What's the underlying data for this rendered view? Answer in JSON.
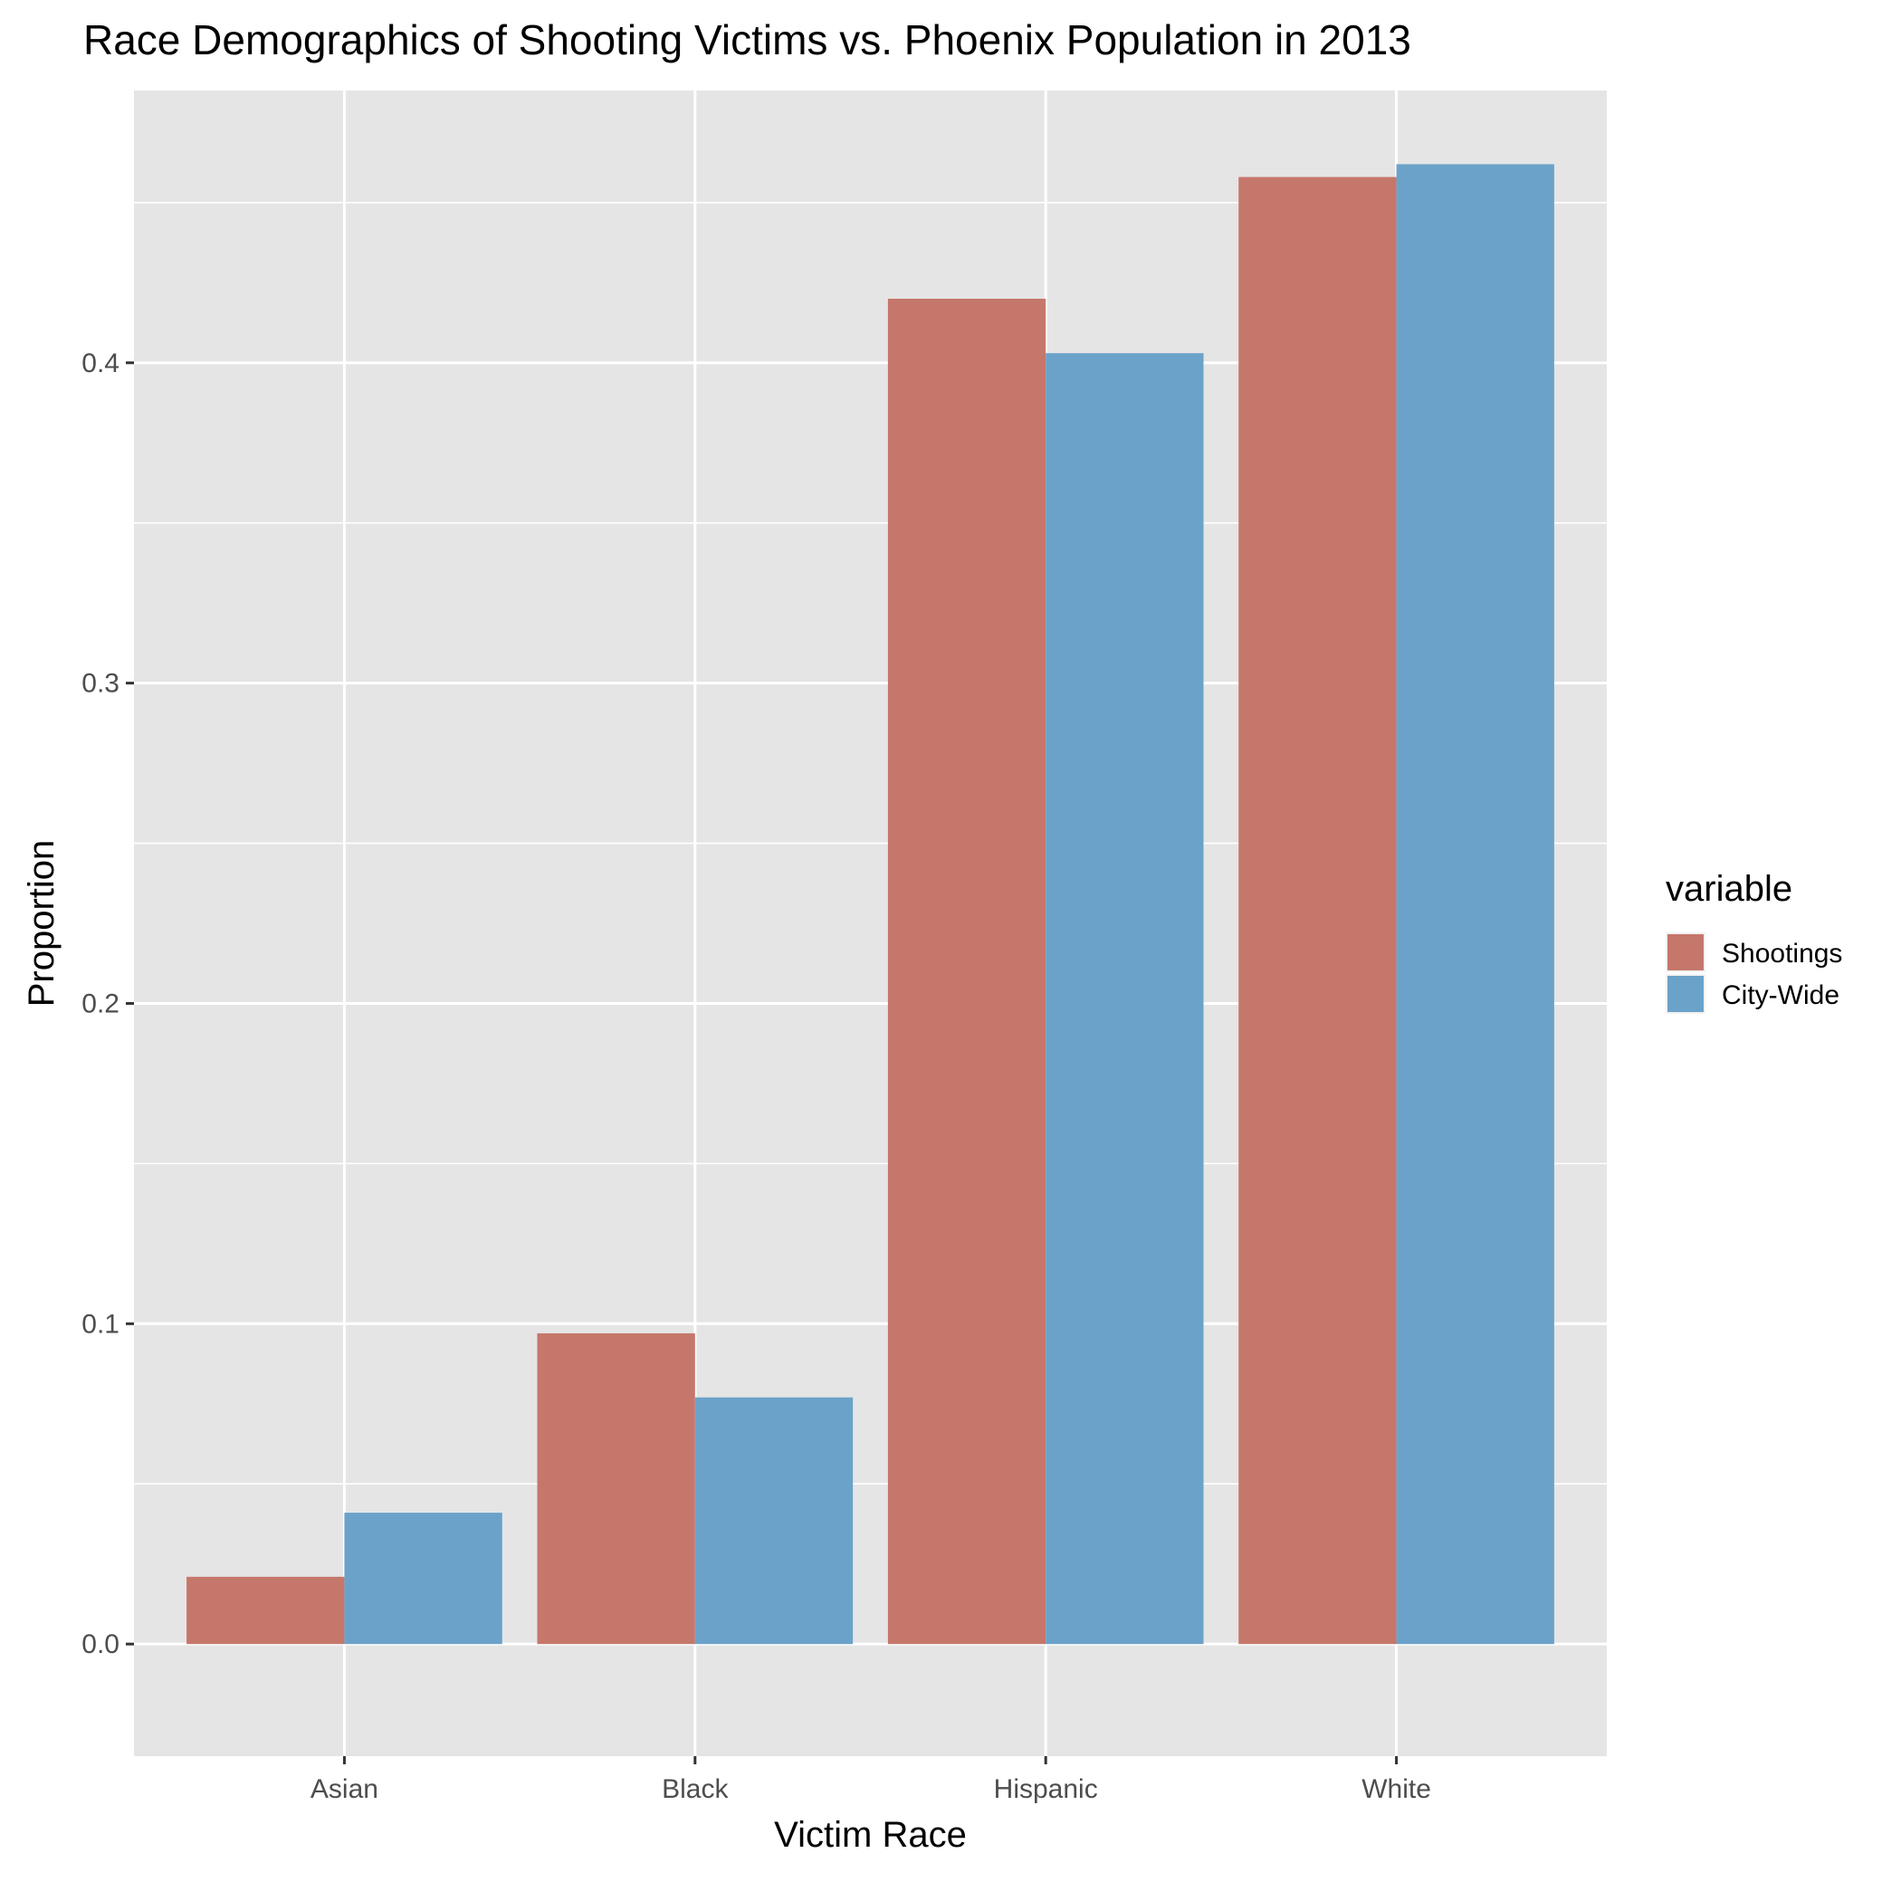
{
  "chart_data": {
    "type": "bar",
    "title": "Race Demographics of Shooting Victims vs. Phoenix Population in 2013",
    "xlabel": "Victim Race",
    "ylabel": "Proportion",
    "categories": [
      "Asian",
      "Black",
      "Hispanic",
      "White"
    ],
    "series": [
      {
        "name": "Shootings",
        "values": [
          0.021,
          0.097,
          0.42,
          0.458
        ],
        "color": "#C5776B"
      },
      {
        "name": "City-Wide",
        "values": [
          0.041,
          0.077,
          0.403,
          0.462
        ],
        "color": "#6BA2C9"
      }
    ],
    "ylim": [
      -0.035,
      0.485
    ],
    "yticks": [
      0.0,
      0.1,
      0.2,
      0.3,
      0.4
    ],
    "ytick_labels": [
      "0.0",
      "0.1",
      "0.2",
      "0.3",
      "0.4"
    ],
    "grid": true,
    "legend": {
      "title": "variable",
      "position": "right"
    },
    "panel_background": "#E5E5E5",
    "grid_color": "#FFFFFF"
  }
}
